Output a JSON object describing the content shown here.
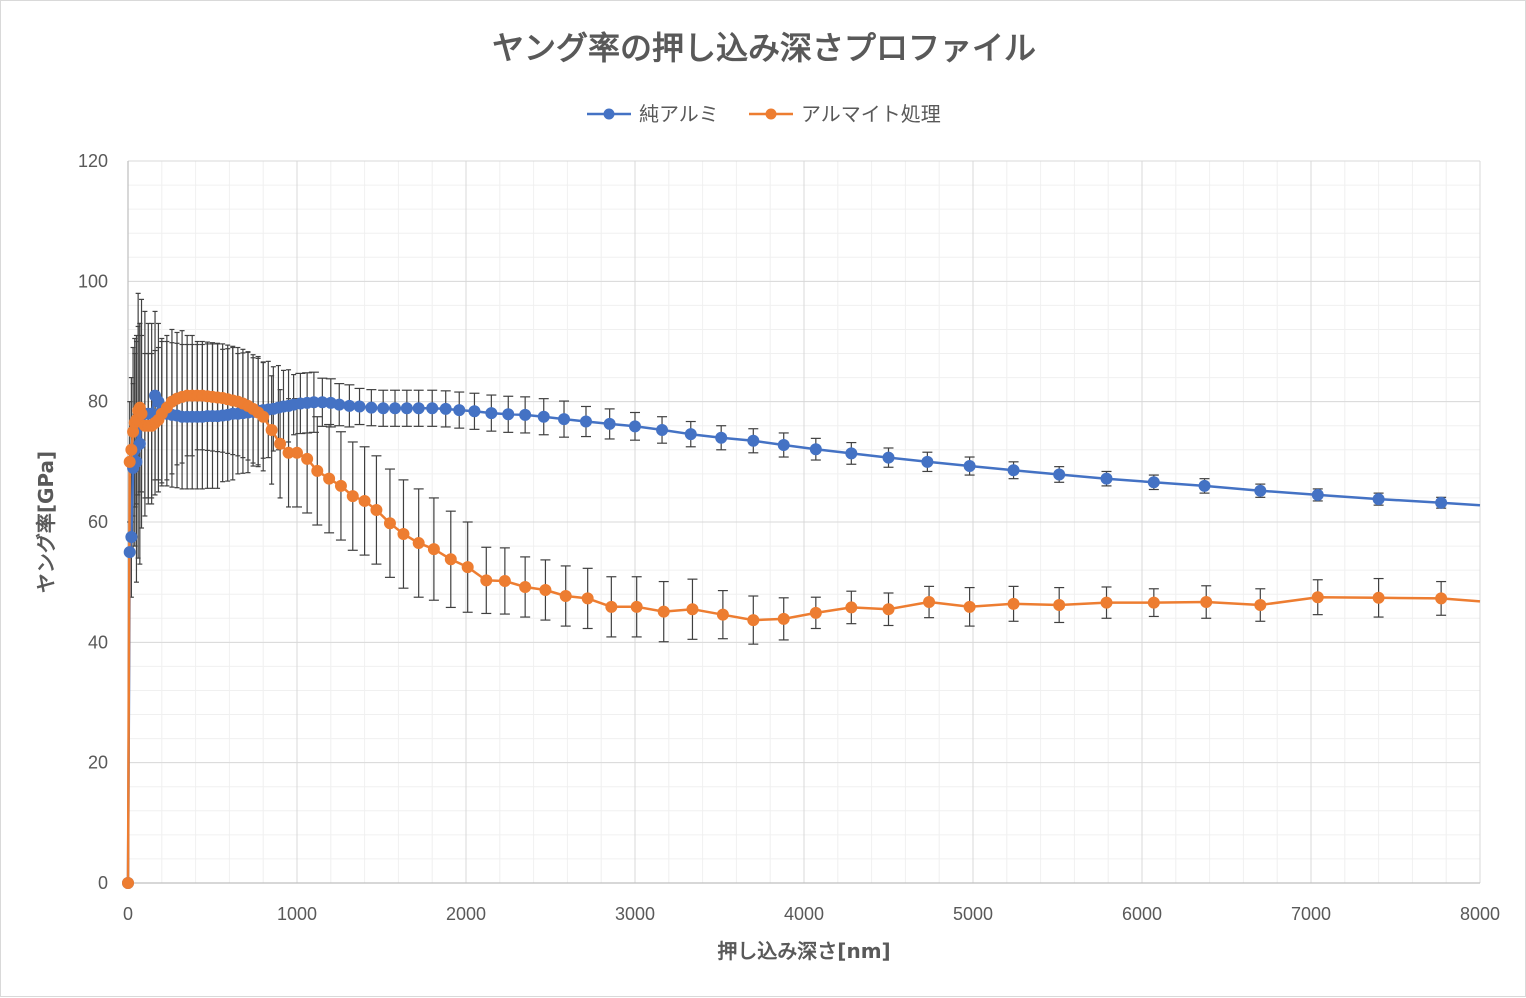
{
  "chart_data": {
    "type": "line",
    "title": "ヤング率の押し込み深さプロファイル",
    "xlabel": "押し込み深さ[nm]",
    "ylabel": "ヤング率[GPa]",
    "xlim": [
      0,
      8000
    ],
    "ylim": [
      0,
      120
    ],
    "xticks": [
      0,
      1000,
      2000,
      3000,
      4000,
      5000,
      6000,
      7000,
      8000
    ],
    "yticks": [
      0,
      20,
      40,
      60,
      80,
      100,
      120
    ],
    "grid": true,
    "minor_grid": true,
    "legend_position": "top-center",
    "series": [
      {
        "name": "純アルミ",
        "color": "#4472C4",
        "points": [
          [
            0,
            0,
            0
          ],
          [
            10,
            55,
            0
          ],
          [
            20,
            57.5,
            10
          ],
          [
            30,
            69,
            14
          ],
          [
            40,
            72,
            16
          ],
          [
            50,
            70,
            20
          ],
          [
            60,
            76,
            22
          ],
          [
            70,
            73,
            20
          ],
          [
            80,
            78,
            19
          ],
          [
            100,
            78,
            17
          ],
          [
            120,
            78,
            15
          ],
          [
            140,
            78,
            15
          ],
          [
            160,
            81,
            14
          ],
          [
            180,
            80,
            13
          ],
          [
            200,
            78.5,
            12
          ],
          [
            230,
            78,
            12
          ],
          [
            260,
            77.8,
            12
          ],
          [
            290,
            77.7,
            12
          ],
          [
            320,
            77.5,
            12
          ],
          [
            350,
            77.5,
            12
          ],
          [
            380,
            77.5,
            12
          ],
          [
            410,
            77.5,
            12
          ],
          [
            440,
            77.5,
            12
          ],
          [
            470,
            77.6,
            12
          ],
          [
            500,
            77.6,
            12
          ],
          [
            530,
            77.6,
            12
          ],
          [
            560,
            77.7,
            11
          ],
          [
            590,
            77.8,
            11
          ],
          [
            620,
            78,
            11
          ],
          [
            650,
            78,
            10
          ],
          [
            680,
            78.1,
            10
          ],
          [
            710,
            78.2,
            10
          ],
          [
            740,
            78.3,
            9
          ],
          [
            770,
            78.5,
            9
          ],
          [
            800,
            78.6,
            8
          ],
          [
            830,
            78.7,
            8
          ],
          [
            860,
            78.8,
            7
          ],
          [
            890,
            79,
            7
          ],
          [
            920,
            79.2,
            6
          ],
          [
            950,
            79.3,
            6
          ],
          [
            980,
            79.5,
            5
          ],
          [
            1020,
            79.7,
            5
          ],
          [
            1060,
            79.8,
            5
          ],
          [
            1100,
            79.9,
            5
          ],
          [
            1150,
            79.9,
            4
          ],
          [
            1200,
            79.8,
            4
          ],
          [
            1250,
            79.5,
            3.5
          ],
          [
            1310,
            79.3,
            3.5
          ],
          [
            1370,
            79.2,
            3
          ],
          [
            1440,
            79.0,
            3
          ],
          [
            1510,
            78.9,
            3
          ],
          [
            1580,
            78.9,
            3
          ],
          [
            1650,
            78.9,
            3
          ],
          [
            1720,
            78.9,
            3
          ],
          [
            1800,
            78.9,
            3
          ],
          [
            1880,
            78.8,
            3
          ],
          [
            1960,
            78.6,
            3
          ],
          [
            2050,
            78.4,
            3
          ],
          [
            2150,
            78.1,
            3
          ],
          [
            2250,
            77.9,
            3
          ],
          [
            2350,
            77.8,
            3
          ],
          [
            2460,
            77.5,
            3
          ],
          [
            2580,
            77.1,
            3
          ],
          [
            2710,
            76.7,
            2.5
          ],
          [
            2850,
            76.3,
            2.5
          ],
          [
            3000,
            75.9,
            2.3
          ],
          [
            3160,
            75.3,
            2.2
          ],
          [
            3330,
            74.6,
            2.1
          ],
          [
            3510,
            74.0,
            2
          ],
          [
            3700,
            73.5,
            2
          ],
          [
            3880,
            72.8,
            2
          ],
          [
            4070,
            72.1,
            1.8
          ],
          [
            4280,
            71.4,
            1.8
          ],
          [
            4500,
            70.7,
            1.6
          ],
          [
            4730,
            70.0,
            1.6
          ],
          [
            4980,
            69.3,
            1.5
          ],
          [
            5240,
            68.6,
            1.4
          ],
          [
            5510,
            67.9,
            1.3
          ],
          [
            5790,
            67.2,
            1.2
          ],
          [
            6070,
            66.6,
            1.2
          ],
          [
            6370,
            66.0,
            1.2
          ],
          [
            6700,
            65.2,
            1.1
          ],
          [
            7040,
            64.5,
            1
          ],
          [
            7400,
            63.8,
            1
          ],
          [
            7770,
            63.2,
            0.9
          ],
          [
            8000,
            62.8,
            0
          ]
        ]
      },
      {
        "name": "アルマイト処理",
        "color": "#ED7D31",
        "points": [
          [
            0,
            0,
            0
          ],
          [
            10,
            70,
            10
          ],
          [
            20,
            72,
            12
          ],
          [
            30,
            75,
            14
          ],
          [
            40,
            76.5,
            14
          ],
          [
            50,
            77,
            14
          ],
          [
            60,
            78.5,
            14
          ],
          [
            70,
            79,
            14
          ],
          [
            80,
            78,
            13
          ],
          [
            100,
            76,
            12
          ],
          [
            120,
            76,
            12
          ],
          [
            140,
            76,
            12
          ],
          [
            160,
            76.5,
            12
          ],
          [
            180,
            77,
            12
          ],
          [
            200,
            78,
            12
          ],
          [
            230,
            79,
            12
          ],
          [
            260,
            80,
            12
          ],
          [
            290,
            80.5,
            11
          ],
          [
            320,
            80.8,
            11
          ],
          [
            350,
            81,
            10
          ],
          [
            380,
            81,
            10
          ],
          [
            410,
            81,
            9
          ],
          [
            440,
            81,
            9
          ],
          [
            470,
            80.9,
            9
          ],
          [
            500,
            80.8,
            9
          ],
          [
            530,
            80.7,
            9
          ],
          [
            560,
            80.6,
            9
          ],
          [
            590,
            80.4,
            9
          ],
          [
            620,
            80.2,
            9
          ],
          [
            650,
            80,
            9
          ],
          [
            680,
            79.7,
            9
          ],
          [
            710,
            79.3,
            9
          ],
          [
            740,
            78.8,
            9
          ],
          [
            770,
            78.2,
            9
          ],
          [
            800,
            77.5,
            9
          ],
          [
            850,
            75.3,
            9
          ],
          [
            900,
            73,
            9
          ],
          [
            950,
            71.5,
            9
          ],
          [
            1000,
            71.5,
            9
          ],
          [
            1060,
            70.5,
            9
          ],
          [
            1120,
            68.5,
            9
          ],
          [
            1190,
            67.2,
            9
          ],
          [
            1260,
            66,
            9
          ],
          [
            1330,
            64.3,
            9
          ],
          [
            1400,
            63.5,
            9
          ],
          [
            1470,
            62,
            9
          ],
          [
            1550,
            59.8,
            9
          ],
          [
            1630,
            58,
            9
          ],
          [
            1720,
            56.5,
            9
          ],
          [
            1810,
            55.5,
            8.5
          ],
          [
            1910,
            53.8,
            8
          ],
          [
            2010,
            52.5,
            7.5
          ],
          [
            2120,
            50.3,
            5.5
          ],
          [
            2230,
            50.2,
            5.5
          ],
          [
            2350,
            49.2,
            5
          ],
          [
            2470,
            48.7,
            5
          ],
          [
            2590,
            47.7,
            5
          ],
          [
            2720,
            47.3,
            5
          ],
          [
            2860,
            45.9,
            5
          ],
          [
            3010,
            45.9,
            5
          ],
          [
            3170,
            45.1,
            5
          ],
          [
            3340,
            45.5,
            5
          ],
          [
            3520,
            44.6,
            4
          ],
          [
            3700,
            43.7,
            4
          ],
          [
            3880,
            43.9,
            3.5
          ],
          [
            4070,
            44.9,
            2.6
          ],
          [
            4280,
            45.8,
            2.7
          ],
          [
            4500,
            45.5,
            2.7
          ],
          [
            4740,
            46.7,
            2.6
          ],
          [
            4980,
            45.9,
            3.2
          ],
          [
            5240,
            46.4,
            2.9
          ],
          [
            5510,
            46.2,
            2.9
          ],
          [
            5790,
            46.6,
            2.6
          ],
          [
            6070,
            46.6,
            2.3
          ],
          [
            6380,
            46.7,
            2.7
          ],
          [
            6700,
            46.2,
            2.7
          ],
          [
            7040,
            47.5,
            2.9
          ],
          [
            7400,
            47.4,
            3.2
          ],
          [
            7770,
            47.3,
            2.8
          ],
          [
            8000,
            46.8,
            0
          ]
        ]
      }
    ]
  }
}
